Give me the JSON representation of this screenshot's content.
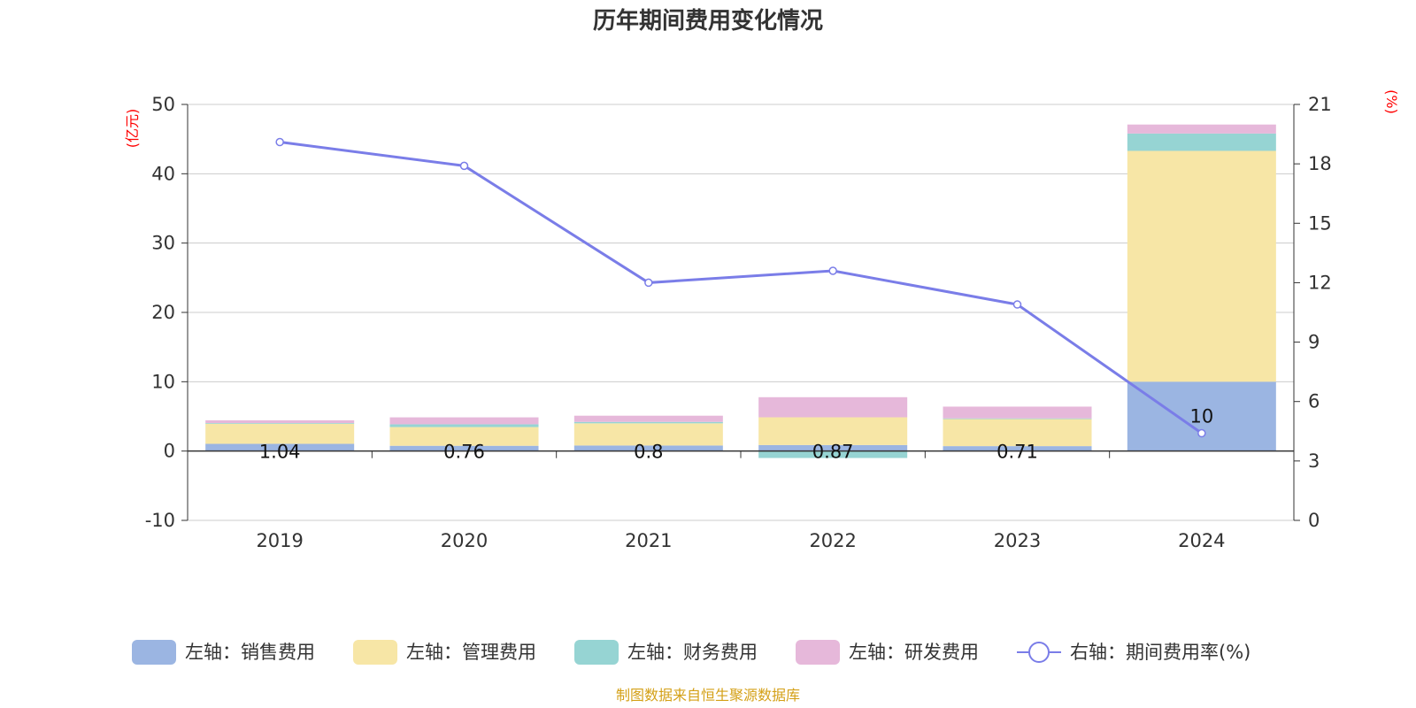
{
  "chart_data": {
    "type": "bar",
    "title": "历年期间费用变化情况",
    "categories": [
      "2019",
      "2020",
      "2021",
      "2022",
      "2023",
      "2024"
    ],
    "left_axis": {
      "unit": "(亿元)",
      "ylim": [
        -10,
        50
      ],
      "ticks": [
        -10,
        0,
        10,
        20,
        30,
        40,
        50
      ]
    },
    "right_axis": {
      "unit": "(%)",
      "ylim": [
        0,
        21
      ],
      "ticks": [
        0,
        3,
        6,
        9,
        12,
        15,
        18,
        21
      ]
    },
    "series": [
      {
        "name": "左轴：销售费用",
        "axis": "left",
        "type": "bar",
        "color": "#9bb5e2",
        "values": [
          1.04,
          0.76,
          0.8,
          0.87,
          0.71,
          10
        ],
        "labels": [
          "1.04",
          "0.76",
          "0.8",
          "0.87",
          "0.71",
          "10"
        ]
      },
      {
        "name": "左轴：管理费用",
        "axis": "left",
        "type": "bar",
        "color": "#f7e6a6",
        "values": [
          2.9,
          2.7,
          3.2,
          4.0,
          3.9,
          33.3
        ]
      },
      {
        "name": "左轴：财务费用",
        "axis": "left",
        "type": "bar",
        "color": "#96d4d3",
        "values": [
          0.1,
          0.4,
          0.2,
          -1.0,
          0.1,
          2.5
        ]
      },
      {
        "name": "左轴：研发费用",
        "axis": "left",
        "type": "bar",
        "color": "#e6b8da",
        "values": [
          0.4,
          1.0,
          0.9,
          2.9,
          1.7,
          1.3
        ]
      },
      {
        "name": "右轴：期间费用率(%)",
        "axis": "right",
        "type": "line",
        "color": "#7a7de8",
        "values": [
          19.1,
          17.9,
          12.0,
          12.6,
          10.9,
          4.4
        ]
      }
    ]
  },
  "footer": "制图数据来自恒生聚源数据库"
}
